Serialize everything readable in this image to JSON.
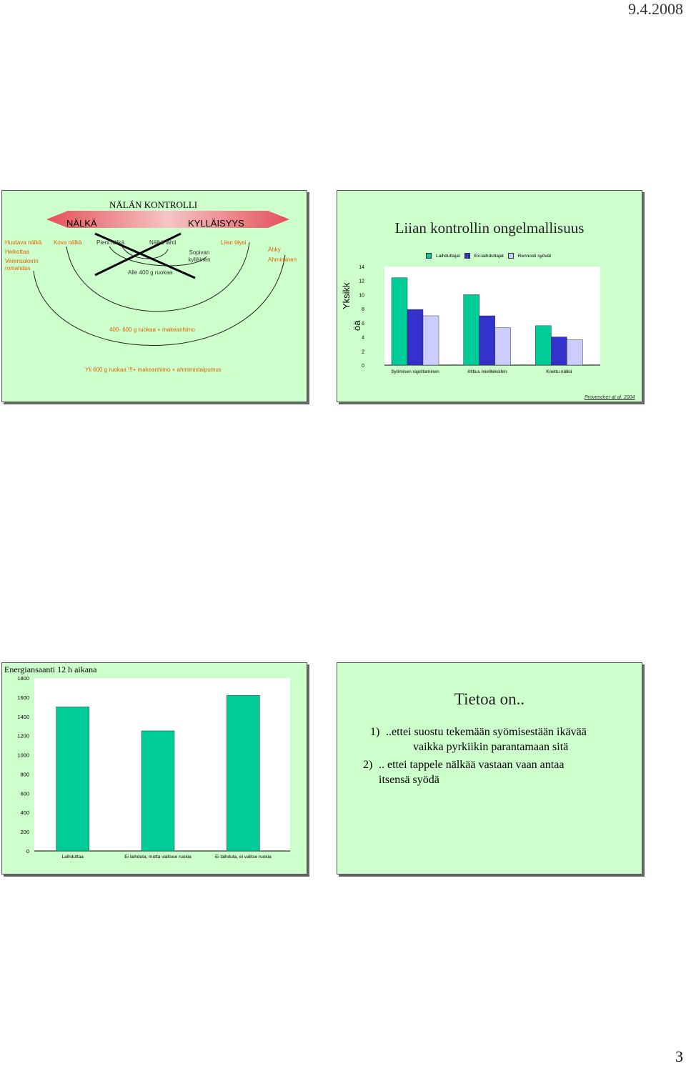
{
  "header": {
    "date": "9.4.2008"
  },
  "footer": {
    "page_number": "3"
  },
  "slide1": {
    "title": "NÄLÄN KONTROLLI",
    "arrow_left": "NÄLKÄ",
    "arrow_right": "KYLLÄISYYS",
    "col1": [
      "Huutava nälkä",
      "Heikottaa",
      "Verensokerin romahdus"
    ],
    "kova": "Kova nälkä",
    "pieni": "Pieni nälkä",
    "lahti": "Nälkä lähti",
    "sopivan": "Sopivan kylläinen",
    "liian_taysi": "Liian täysi",
    "ahky": "Ähky",
    "ahmiminen": "Ahmiminen",
    "alle400": "Alle 400 g ruokaa",
    "mid": "400- 600 g ruokaa + makeanhimo",
    "yli600": "Yli 600 g ruokaa !!!+ makeanhimo + ahmimistaipumus"
  },
  "slide2": {
    "title": "Liian kontrollin ongelmallisuus",
    "ylabel": "Yksikköä",
    "ylabel_line1": "Yksikk",
    "ylabel_line2": "öä",
    "source": "Provencher at al. 2004",
    "chart_data": {
      "type": "bar",
      "categories": [
        "Syömisen rajoittaminen",
        "Alttius mielitekoihin",
        "Koettu nälkä"
      ],
      "series": [
        {
          "name": "Laihduttajat",
          "values": [
            12.4,
            10.0,
            5.6
          ]
        },
        {
          "name": "Ex-laihduttajat",
          "values": [
            7.9,
            7.0,
            4.0
          ]
        },
        {
          "name": "Rennosti syövät",
          "values": [
            7.0,
            5.3,
            3.6
          ]
        }
      ],
      "ylim": [
        0,
        14
      ],
      "yticks": [
        0,
        2,
        4,
        6,
        8,
        10,
        12,
        14
      ],
      "colors": [
        "#00cc99",
        "#3333cc",
        "#ccccff"
      ],
      "legend": "top"
    }
  },
  "slide3": {
    "title": "Energiansaanti 12 h aikana",
    "chart_data": {
      "type": "bar",
      "categories": [
        "Laihduttaa",
        "Ei laihduta, mutta valitsee ruokia",
        "Ei laihduta, ei valitse ruokia"
      ],
      "values": [
        1500,
        1250,
        1620
      ],
      "ylim": [
        0,
        1800
      ],
      "yticks": [
        0,
        200,
        400,
        600,
        800,
        1000,
        1200,
        1400,
        1600,
        1800
      ],
      "color": "#00cc99"
    }
  },
  "slide4": {
    "title": "Tietoa on..",
    "item1_num": "1)",
    "item1_line1": "..ettei suostu tekemään syömisestään ikävää",
    "item1_line2": "vaikka pyrkiikin parantamaan sitä",
    "item2_num": "2)",
    "item2_line1": ".. ettei tappele nälkää vastaan vaan antaa",
    "item2_line2": "itsensä syödä"
  }
}
